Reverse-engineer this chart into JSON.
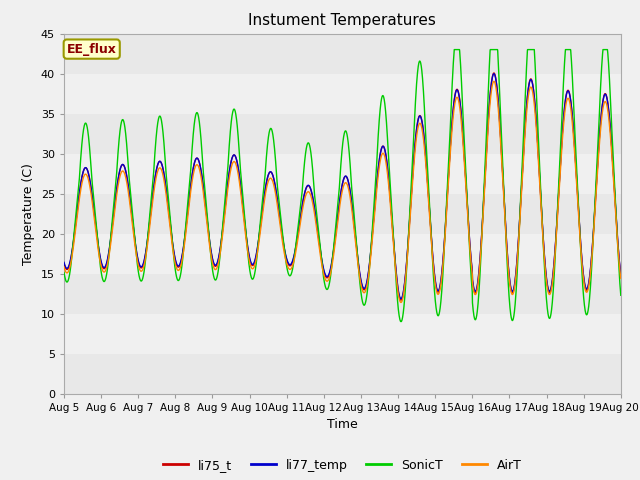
{
  "title": "Instument Temperatures",
  "xlabel": "Time",
  "ylabel": "Temperature (C)",
  "ylim": [
    0,
    45
  ],
  "x_tick_labels": [
    "Aug 5",
    "Aug 6",
    "Aug 7",
    "Aug 8",
    "Aug 9",
    "Aug 10",
    "Aug 11",
    "Aug 12",
    "Aug 13",
    "Aug 14",
    "Aug 15",
    "Aug 16",
    "Aug 17",
    "Aug 18",
    "Aug 19",
    "Aug 20"
  ],
  "annotation": "EE_flux",
  "annotation_color": "#8b0000",
  "annotation_bg": "#ffffcc",
  "annotation_border": "#999900",
  "colors": {
    "li75_t": "#cc0000",
    "li77_temp": "#0000cc",
    "SonicT": "#00cc00",
    "AirT": "#ff8800"
  },
  "background_bands": [
    {
      "ymin": 0,
      "ymax": 5,
      "color": "#e8e8e8"
    },
    {
      "ymin": 5,
      "ymax": 10,
      "color": "#f0f0f0"
    },
    {
      "ymin": 10,
      "ymax": 15,
      "color": "#e8e8e8"
    },
    {
      "ymin": 15,
      "ymax": 20,
      "color": "#f0f0f0"
    },
    {
      "ymin": 20,
      "ymax": 25,
      "color": "#e8e8e8"
    },
    {
      "ymin": 25,
      "ymax": 30,
      "color": "#f0f0f0"
    },
    {
      "ymin": 30,
      "ymax": 35,
      "color": "#e8e8e8"
    },
    {
      "ymin": 35,
      "ymax": 40,
      "color": "#f0f0f0"
    },
    {
      "ymin": 40,
      "ymax": 45,
      "color": "#e8e8e8"
    }
  ],
  "fig_bg": "#f0f0f0",
  "linewidth": 1.0
}
